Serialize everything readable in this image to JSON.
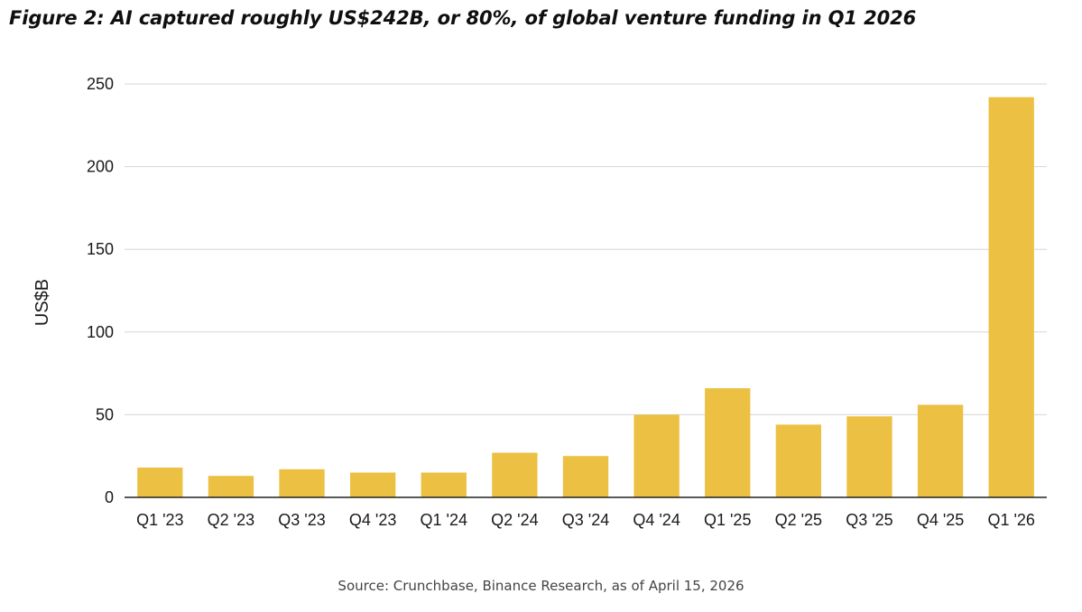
{
  "chart_data": {
    "type": "bar",
    "title": "Figure 2: AI captured roughly US$242B, or 80%, of global venture funding in Q1 2026",
    "xlabel": "",
    "ylabel": "US$B",
    "ylim": [
      0,
      250
    ],
    "yticks": [
      0,
      50,
      100,
      150,
      200,
      250
    ],
    "grid": true,
    "categories": [
      "Q1 '23",
      "Q2 '23",
      "Q3 '23",
      "Q4 '23",
      "Q1 '24",
      "Q2 '24",
      "Q3 '24",
      "Q4 '24",
      "Q1 '25",
      "Q2 '25",
      "Q3 '25",
      "Q4 '25",
      "Q1 '26"
    ],
    "values": [
      18,
      13,
      17,
      15,
      15,
      27,
      25,
      50,
      66,
      44,
      49,
      56,
      242
    ],
    "bar_color": "#ecc042",
    "grid_color": "#d6d6d6",
    "axis_color": "#222222"
  },
  "source": "Source: Crunchbase, Binance Research, as of April 15, 2026"
}
